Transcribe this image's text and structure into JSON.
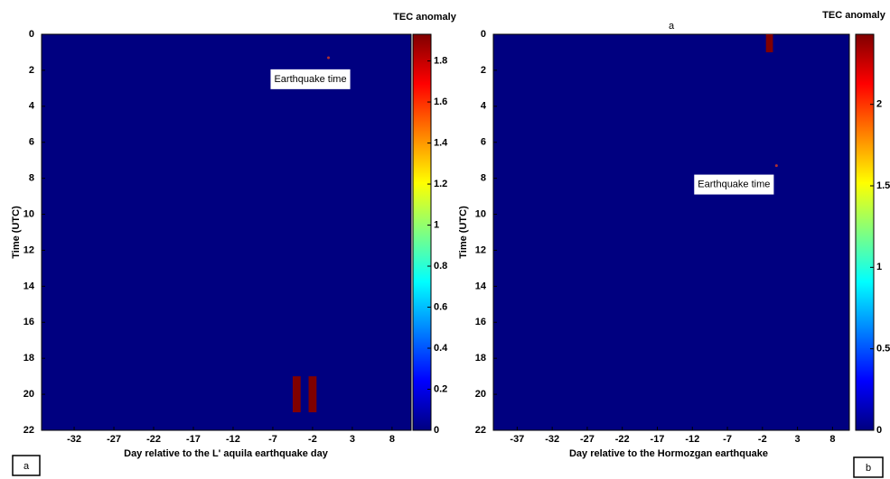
{
  "chart_data": [
    {
      "type": "heatmap",
      "colormap": "jet",
      "colorbar_title": "TEC anomaly",
      "xlabel": "Day relative to the L' aquila earthquake day",
      "ylabel": "Time (UTC)",
      "xlim": [
        -36.1,
        10.4
      ],
      "xticks": [
        -32,
        -27,
        -22,
        -17,
        -12,
        -7,
        -2,
        3,
        8
      ],
      "ylim": [
        0,
        22
      ],
      "y_inverted": true,
      "yticks": [
        0,
        2,
        4,
        6,
        8,
        10,
        12,
        14,
        16,
        18,
        20,
        22
      ],
      "clim": [
        0,
        1.93
      ],
      "cticks": [
        0,
        0.2,
        0.4,
        0.6,
        0.8,
        1,
        1.2,
        1.4,
        1.6,
        1.8
      ],
      "cells": [
        {
          "x": -4,
          "y": [
            19,
            21
          ],
          "value": 1.93
        },
        {
          "x": -2,
          "y": [
            19,
            21
          ],
          "value": 1.93
        }
      ],
      "annotation": {
        "text": "Earthquake time",
        "x": 0,
        "y": 1.3
      },
      "panel_label": "a"
    },
    {
      "type": "heatmap",
      "colormap": "jet",
      "title": "a",
      "colorbar_title": "TEC anomaly",
      "xlabel": "Day relative to the Hormozgan earthquake",
      "ylabel": "Time (UTC)",
      "xlim": [
        -40.4,
        10.4
      ],
      "xticks": [
        -37,
        -32,
        -27,
        -22,
        -17,
        -12,
        -7,
        -2,
        3,
        8
      ],
      "ylim": [
        0,
        22
      ],
      "y_inverted": true,
      "yticks": [
        0,
        2,
        4,
        6,
        8,
        10,
        12,
        14,
        16,
        18,
        20,
        22
      ],
      "clim": [
        0,
        2.43
      ],
      "cticks": [
        0,
        0.5,
        1,
        1.5,
        2
      ],
      "cells": [
        {
          "x": -1,
          "y": [
            0,
            1
          ],
          "value": 2.43
        }
      ],
      "annotation": {
        "text": "Earthquake time",
        "x": 0,
        "y": 7.3
      },
      "panel_label": "b"
    }
  ]
}
